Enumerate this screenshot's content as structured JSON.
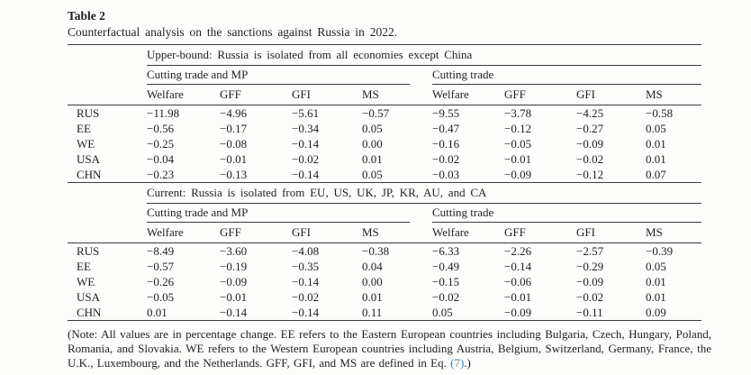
{
  "page": {
    "table_label": "Table 2",
    "caption": "Counterfactual analysis on the sanctions against Russia in 2022."
  },
  "table": {
    "col_headers": [
      "Welfare",
      "GFF",
      "GFI",
      "MS"
    ],
    "sections": [
      {
        "title": "Upper-bound: Russia is isolated from all economies except China",
        "groups": [
          {
            "label": "Cutting trade and MP"
          },
          {
            "label": "Cutting trade"
          }
        ],
        "rows": [
          {
            "label": "RUS",
            "values": [
              "−11.98",
              "−4.96",
              "−5.61",
              "−0.57",
              "−9.55",
              "−3.78",
              "−4.25",
              "−0.58"
            ]
          },
          {
            "label": "EE",
            "values": [
              "−0.56",
              "−0.17",
              "−0.34",
              "0.05",
              "−0.47",
              "−0.12",
              "−0.27",
              "0.05"
            ]
          },
          {
            "label": "WE",
            "values": [
              "−0.25",
              "−0.08",
              "−0.14",
              "0.00",
              "−0.16",
              "−0.05",
              "−0.09",
              "0.01"
            ]
          },
          {
            "label": "USA",
            "values": [
              "−0.04",
              "−0.01",
              "−0.02",
              "0.01",
              "−0.02",
              "−0.01",
              "−0.02",
              "0.01"
            ]
          },
          {
            "label": "CHN",
            "values": [
              "−0.23",
              "−0.13",
              "−0.14",
              "0.05",
              "−0.03",
              "−0.09",
              "−0.12",
              "0.07"
            ]
          }
        ]
      },
      {
        "title": "Current: Russia is isolated from EU, US, UK, JP, KR, AU, and CA",
        "groups": [
          {
            "label": "Cutting trade and MP"
          },
          {
            "label": "Cutting trade"
          }
        ],
        "rows": [
          {
            "label": "RUS",
            "values": [
              "−8.49",
              "−3.60",
              "−4.08",
              "−0.38",
              "−6.33",
              "−2.26",
              "−2.57",
              "−0.39"
            ]
          },
          {
            "label": "EE",
            "values": [
              "−0.57",
              "−0.19",
              "−0.35",
              "0.04",
              "−0.49",
              "−0.14",
              "−0.29",
              "0.05"
            ]
          },
          {
            "label": "WE",
            "values": [
              "−0.26",
              "−0.09",
              "−0.14",
              "0.00",
              "−0.15",
              "−0.06",
              "−0.09",
              "0.01"
            ]
          },
          {
            "label": "USA",
            "values": [
              "−0.05",
              "−0.01",
              "−0.02",
              "0.01",
              "−0.02",
              "−0.01",
              "−0.02",
              "0.01"
            ]
          },
          {
            "label": "CHN",
            "values": [
              "0.01",
              "−0.14",
              "−0.14",
              "0.11",
              "0.05",
              "−0.09",
              "−0.11",
              "0.09"
            ]
          }
        ]
      }
    ]
  },
  "note": {
    "before_link": "(Note: All values are in percentage change. EE refers to the Eastern European countries including Bulgaria, Czech, Hungary, Poland, Romania, and Slovakia. WE refers to the Western European countries including Austria, Belgium, Switzerland, Germany, France, the U.K., Luxembourg, and the Netherlands. GFF, GFI, and MS are defined in Eq. ",
    "link": "(7)",
    "after_link": ".)"
  },
  "colors": {
    "link_blue": "#3b84b6",
    "rule": "#3c3c3c",
    "text": "#1f1f1f"
  }
}
